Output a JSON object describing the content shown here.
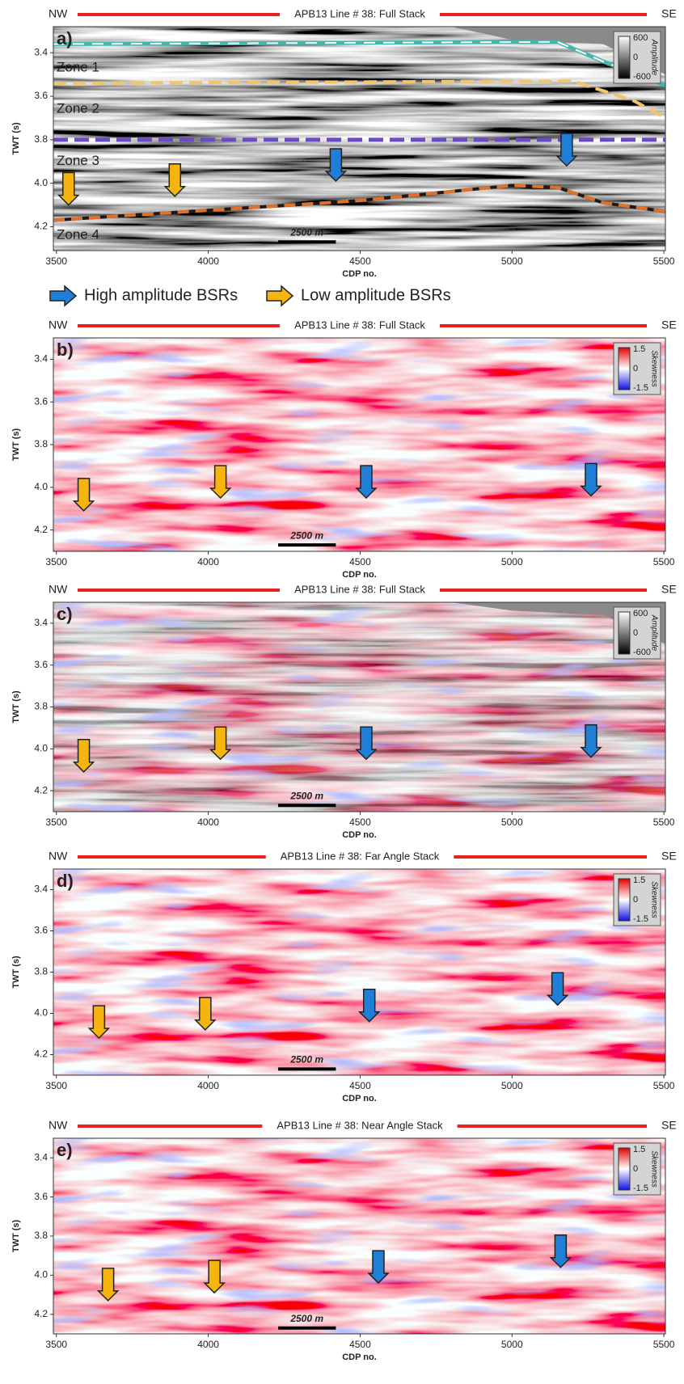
{
  "panels": [
    {
      "label": "a)",
      "left": "NW",
      "right": "SE",
      "title": "APB13 Line # 38: Full Stack",
      "xlabel": "CDP no.",
      "ylabel": "TWT (s)",
      "xlim": [
        3490,
        5505
      ],
      "ylim": [
        3.28,
        4.31
      ],
      "xticks": [
        3500,
        4000,
        4500,
        5000,
        5500
      ],
      "yticks": [
        3.4,
        3.6,
        3.8,
        {
          "value": 4,
          "label": "4.0"
        },
        4.2
      ],
      "colorbar": {
        "title": "Amplitude",
        "ticks": [
          600,
          0,
          -600
        ]
      },
      "scalebar": "2500 m",
      "zones": [
        "Zone 1",
        "Zone 2",
        "Zone 3",
        "Zone 4"
      ]
    },
    {
      "label": "b)",
      "left": "NW",
      "right": "SE",
      "title": "APB13 Line # 38: Full Stack",
      "xlabel": "CDP no.",
      "ylabel": "TWT (s)",
      "xlim": [
        3490,
        5505
      ],
      "ylim": [
        3.3,
        4.3
      ],
      "xticks": [
        3500,
        4000,
        4500,
        5000,
        5500
      ],
      "yticks": [
        3.4,
        3.6,
        3.8,
        {
          "value": 4,
          "label": "4.0"
        },
        4.2
      ],
      "colorbar": {
        "title": "Skewness",
        "ticks": [
          1.5,
          0,
          -1.5
        ]
      },
      "scalebar": "2500 m"
    },
    {
      "label": "c)",
      "left": "NW",
      "right": "SE",
      "title": "APB13 Line # 38: Full Stack",
      "xlabel": "CDP no.",
      "ylabel": "TWT (s)",
      "xlim": [
        3490,
        5505
      ],
      "ylim": [
        3.3,
        4.3
      ],
      "xticks": [
        3500,
        4000,
        4500,
        5000,
        5500
      ],
      "yticks": [
        3.4,
        3.6,
        3.8,
        {
          "value": 4,
          "label": "4.0"
        },
        4.2
      ],
      "colorbar": {
        "title": "Amplitude",
        "ticks": [
          600,
          0,
          -600
        ]
      },
      "scalebar": "2500 m"
    },
    {
      "label": "d)",
      "left": "NW",
      "right": "SE",
      "title": "APB13 Line # 38: Far Angle Stack",
      "xlabel": "CDP no.",
      "ylabel": "TWT (s)",
      "xlim": [
        3490,
        5505
      ],
      "ylim": [
        3.3,
        4.3
      ],
      "xticks": [
        3500,
        4000,
        4500,
        5000,
        5500
      ],
      "yticks": [
        3.4,
        3.6,
        3.8,
        {
          "value": 4,
          "label": "4.0"
        },
        4.2
      ],
      "colorbar": {
        "title": "Skewness",
        "ticks": [
          1.5,
          0,
          -1.5
        ]
      },
      "scalebar": "2500 m"
    },
    {
      "label": "e)",
      "left": "NW",
      "right": "SE",
      "title": "APB13 Line # 38: Near Angle Stack",
      "xlabel": "CDP no.",
      "ylabel": "TWT (s)",
      "xlim": [
        3490,
        5505
      ],
      "ylim": [
        3.3,
        4.3
      ],
      "xticks": [
        3500,
        4000,
        4500,
        5000,
        5500
      ],
      "yticks": [
        3.4,
        3.6,
        3.8,
        {
          "value": 4,
          "label": "4.0"
        },
        4.2
      ],
      "colorbar": {
        "title": "Skewness",
        "ticks": [
          1.5,
          0,
          -1.5
        ]
      },
      "scalebar": "2500 m"
    }
  ],
  "legend": [
    {
      "label": "High amplitude BSRs",
      "color": "#1f7fd6"
    },
    {
      "label": "Low amplitude BSRs",
      "color": "#f6b40e"
    }
  ]
}
